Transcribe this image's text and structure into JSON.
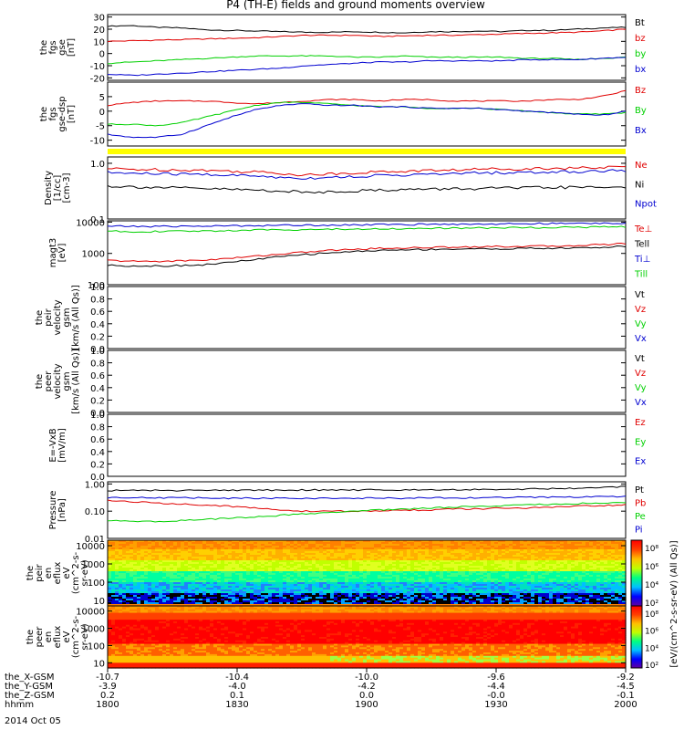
{
  "title": "P4 (TH-E) fields and ground moments overview",
  "colors": {
    "black": "#000000",
    "red": "#e00000",
    "green": "#00d000",
    "blue": "#0000d0",
    "yellow": "#ffff00"
  },
  "chart_data": [
    {
      "type": "line",
      "ylabel": [
        "the",
        "fgs",
        "gse",
        "[nT]"
      ],
      "ylim": [
        -22,
        32
      ],
      "ticks": [
        "30",
        "20",
        "10",
        "0",
        "-10",
        "-20"
      ],
      "series": [
        {
          "name": "Bt",
          "color": "black",
          "y": [
            22.5,
            23,
            21.5,
            21,
            19.5,
            19,
            18.5,
            18,
            17.5,
            17.5,
            18,
            17.5,
            17,
            18,
            18,
            18.5,
            18,
            19,
            19,
            20,
            21,
            21.5
          ]
        },
        {
          "name": "bz",
          "color": "red",
          "y": [
            10,
            10.5,
            11,
            11.5,
            12,
            12.5,
            13,
            14,
            15,
            15,
            15,
            14,
            14.5,
            15,
            15,
            15.5,
            16,
            16.5,
            17,
            17.5,
            18.5,
            20
          ]
        },
        {
          "name": "by",
          "color": "green",
          "y": [
            -8,
            -7,
            -6,
            -5,
            -4,
            -3,
            -2,
            -2,
            -2,
            -2,
            -3,
            -3,
            -2,
            -3,
            -3,
            -3,
            -3,
            -4,
            -4,
            -5,
            -4,
            -3
          ]
        },
        {
          "name": "bx",
          "color": "blue",
          "y": [
            -17,
            -18,
            -17,
            -16,
            -15,
            -14,
            -13,
            -12,
            -10,
            -9,
            -8,
            -7,
            -7,
            -6,
            -6,
            -6,
            -6,
            -5,
            -5,
            -5,
            -4,
            -3
          ]
        }
      ]
    },
    {
      "type": "line",
      "ylabel": [
        "the",
        "fgs",
        "gse-dsp",
        "[nT]"
      ],
      "ylim": [
        -12,
        10
      ],
      "ticks": [
        "5",
        "0",
        "-5",
        "-10"
      ],
      "series": [
        {
          "name": "Bz",
          "color": "red",
          "y": [
            2,
            3,
            3.5,
            3.5,
            3.5,
            3,
            2.5,
            3,
            3.5,
            4,
            4,
            3.5,
            4,
            4,
            3.5,
            3.5,
            3.5,
            3.5,
            4,
            4,
            5,
            7
          ]
        },
        {
          "name": "By",
          "color": "green",
          "y": [
            -4.5,
            -4.5,
            -5,
            -4,
            -2,
            0,
            2,
            3,
            3,
            2.5,
            2,
            1.5,
            1.5,
            1,
            1,
            1,
            0.5,
            0,
            -0.5,
            -1,
            -1,
            -0.5
          ]
        },
        {
          "name": "Bx",
          "color": "blue",
          "y": [
            -8,
            -9,
            -9,
            -8,
            -5,
            -2,
            0.5,
            2,
            2.5,
            2,
            2,
            1.5,
            1.5,
            1,
            1,
            1,
            0.5,
            0,
            -0.5,
            -1,
            -1.5,
            0
          ]
        }
      ]
    },
    {
      "type": "line",
      "log": true,
      "ylabel": [
        "Density",
        "[1/cc]",
        "[cm-3]"
      ],
      "ylim": [
        0.1,
        1.3
      ],
      "ticks": [
        "1.0",
        "0.1"
      ],
      "series": [
        {
          "name": "Ne",
          "color": "red",
          "y": [
            0.8,
            0.78,
            0.77,
            0.76,
            0.75,
            0.72,
            0.7,
            0.66,
            0.62,
            0.64,
            0.68,
            0.7,
            0.72,
            0.74,
            0.76,
            0.78,
            0.8,
            0.8,
            0.82,
            0.82,
            0.84,
            0.86
          ]
        },
        {
          "name": "Ni",
          "color": "black",
          "y": [
            0.39,
            0.38,
            0.37,
            0.36,
            0.35,
            0.34,
            0.33,
            0.32,
            0.3,
            0.31,
            0.32,
            0.33,
            0.34,
            0.34,
            0.35,
            0.35,
            0.36,
            0.36,
            0.37,
            0.37,
            0.37,
            0.38
          ]
        },
        {
          "name": "Npot",
          "color": "blue",
          "y": [
            0.68,
            0.66,
            0.65,
            0.64,
            0.63,
            0.61,
            0.59,
            0.56,
            0.54,
            0.56,
            0.58,
            0.6,
            0.62,
            0.63,
            0.65,
            0.67,
            0.68,
            0.68,
            0.7,
            0.71,
            0.73,
            0.75
          ]
        }
      ]
    },
    {
      "type": "line",
      "log": true,
      "ylabel": [
        "magt3",
        "[eV]"
      ],
      "ylim": [
        100,
        11000
      ],
      "ticks": [
        "10000",
        "1000",
        "100"
      ],
      "series": [
        {
          "name": "Te⊥",
          "color": "red",
          "y": [
            600,
            560,
            560,
            580,
            620,
            700,
            820,
            950,
            1100,
            1250,
            1350,
            1450,
            1500,
            1550,
            1600,
            1650,
            1650,
            1700,
            1700,
            1800,
            1900,
            2100
          ]
        },
        {
          "name": "Tell",
          "color": "black",
          "y": [
            420,
            400,
            400,
            410,
            440,
            520,
            640,
            780,
            920,
            1050,
            1150,
            1250,
            1300,
            1350,
            1380,
            1400,
            1400,
            1450,
            1450,
            1500,
            1550,
            1700
          ]
        },
        {
          "name": "Ti⊥",
          "color": "blue",
          "y": [
            7500,
            7300,
            7300,
            7400,
            7500,
            7600,
            7800,
            7900,
            8000,
            8100,
            8200,
            8300,
            8400,
            8500,
            8600,
            8700,
            8800,
            8900,
            9000,
            9100,
            9200,
            9400
          ]
        },
        {
          "name": "Till",
          "color": "green",
          "y": [
            5200,
            5000,
            5000,
            5100,
            5200,
            5400,
            5600,
            5700,
            5800,
            5900,
            6000,
            6100,
            6200,
            6300,
            6400,
            6500,
            6600,
            6700,
            6800,
            6900,
            7000,
            7100
          ]
        }
      ]
    },
    {
      "type": "line",
      "ylabel": [
        "the",
        "peir",
        "velocity",
        "gsm",
        "[km/s (All Qs)]"
      ],
      "ylim": [
        0,
        1
      ],
      "ticks": [
        "1.0",
        "0.8",
        "0.6",
        "0.4",
        "0.2",
        "0.0"
      ],
      "series": [
        {
          "name": "Vt",
          "color": "black",
          "y": []
        },
        {
          "name": "Vz",
          "color": "red",
          "y": []
        },
        {
          "name": "Vy",
          "color": "green",
          "y": []
        },
        {
          "name": "Vx",
          "color": "blue",
          "y": []
        }
      ]
    },
    {
      "type": "line",
      "ylabel": [
        "the",
        "peer",
        "velocity",
        "gsm",
        "[km/s (All Qs)]"
      ],
      "ylim": [
        0,
        1
      ],
      "ticks": [
        "1.0",
        "0.8",
        "0.6",
        "0.4",
        "0.2",
        "0.0"
      ],
      "series": [
        {
          "name": "Vt",
          "color": "black",
          "y": []
        },
        {
          "name": "Vz",
          "color": "red",
          "y": []
        },
        {
          "name": "Vy",
          "color": "green",
          "y": []
        },
        {
          "name": "Vx",
          "color": "blue",
          "y": []
        }
      ]
    },
    {
      "type": "line",
      "ylabel": [
        "E=-VxB",
        "[mV/m]"
      ],
      "ylim": [
        0,
        1
      ],
      "ticks": [
        "1.0",
        "0.8",
        "0.6",
        "0.4",
        "0.2",
        "0.0"
      ],
      "series": [
        {
          "name": "Ez",
          "color": "red",
          "y": []
        },
        {
          "name": "Ey",
          "color": "green",
          "y": []
        },
        {
          "name": "Ex",
          "color": "blue",
          "y": []
        }
      ]
    },
    {
      "type": "line",
      "log": true,
      "ylabel": [
        "Pressure",
        "[nPa]"
      ],
      "ylim": [
        0.01,
        1.2
      ],
      "ticks": [
        "1.00",
        "0.10",
        "0.01"
      ],
      "series": [
        {
          "name": "Pt",
          "color": "black",
          "y": [
            0.58,
            0.58,
            0.58,
            0.58,
            0.58,
            0.59,
            0.59,
            0.6,
            0.6,
            0.6,
            0.6,
            0.61,
            0.61,
            0.62,
            0.62,
            0.63,
            0.64,
            0.65,
            0.67,
            0.7,
            0.75,
            0.8
          ]
        },
        {
          "name": "Pb",
          "color": "red",
          "y": [
            0.25,
            0.22,
            0.2,
            0.18,
            0.17,
            0.15,
            0.13,
            0.11,
            0.1,
            0.1,
            0.1,
            0.1,
            0.11,
            0.11,
            0.12,
            0.12,
            0.13,
            0.13,
            0.14,
            0.15,
            0.16,
            0.17
          ]
        },
        {
          "name": "Pe",
          "color": "green",
          "y": [
            0.045,
            0.042,
            0.042,
            0.045,
            0.05,
            0.055,
            0.06,
            0.07,
            0.08,
            0.09,
            0.1,
            0.11,
            0.12,
            0.13,
            0.14,
            0.15,
            0.16,
            0.17,
            0.18,
            0.19,
            0.2,
            0.2
          ]
        },
        {
          "name": "Pi",
          "color": "blue",
          "y": [
            0.32,
            0.32,
            0.31,
            0.31,
            0.31,
            0.3,
            0.3,
            0.3,
            0.3,
            0.3,
            0.3,
            0.3,
            0.3,
            0.31,
            0.31,
            0.31,
            0.32,
            0.32,
            0.33,
            0.33,
            0.34,
            0.34
          ]
        }
      ]
    },
    {
      "type": "heatmap",
      "log": true,
      "ylabel": [
        "the",
        "peir",
        "en",
        "eflux",
        "eV",
        "(cm^2-s-",
        "sr-eV)"
      ],
      "ylim": [
        5,
        20000
      ],
      "ticks": [
        "10000",
        "1000",
        "100",
        "10"
      ]
    },
    {
      "type": "heatmap",
      "log": true,
      "ylabel": [
        "the",
        "peer",
        "en",
        "eflux",
        "eV",
        "(cm^2-s-",
        "sr-eV)"
      ],
      "ylim": [
        5,
        20000
      ],
      "ticks": [
        "10000",
        "1000",
        "100",
        "10"
      ]
    }
  ],
  "colorbar": {
    "label": "[eV/(cm^2-s-sr-eV) (All Qs)]",
    "top_ticks": [
      "10^8",
      "10^6",
      "10^4",
      "10^2"
    ],
    "bottom_ticks": [
      "10^8",
      "10^6",
      "10^4",
      "10^2"
    ]
  },
  "xaxis": {
    "rows": [
      {
        "label": "the_X-GSM",
        "values": [
          "-10.7",
          "-10.4",
          "-10.0",
          "-9.6",
          "-9.2"
        ]
      },
      {
        "label": "the_Y-GSM",
        "values": [
          "-3.9",
          "-4.0",
          "-4.2",
          "-4.4",
          "-4.5"
        ]
      },
      {
        "label": "the_Z-GSM",
        "values": [
          "0.2",
          "0.1",
          "0.0",
          "-0.0",
          "-0.1"
        ]
      },
      {
        "label": "hhmm",
        "values": [
          "1800",
          "1830",
          "1900",
          "1930",
          "2000"
        ]
      }
    ],
    "date": "2014 Oct 05"
  }
}
